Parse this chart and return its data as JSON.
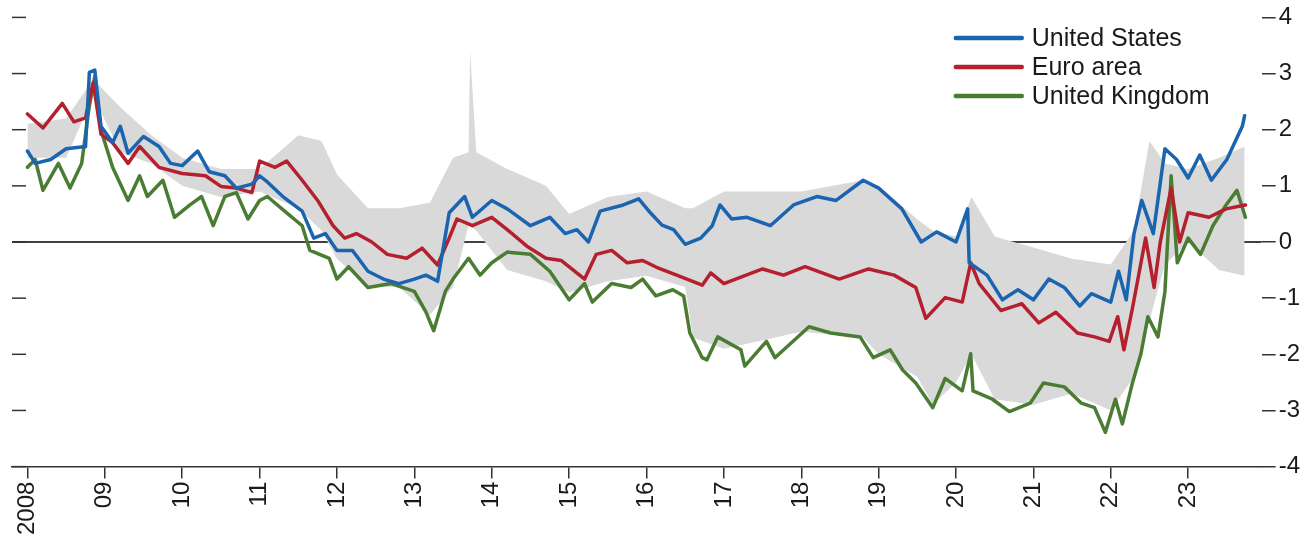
{
  "chart_data": {
    "type": "line",
    "legend": "top right",
    "grid": false,
    "marker": "none",
    "line_style": "solid",
    "xlim": [
      2007.8,
      2023.95
    ],
    "xticks": [
      {
        "value": 2008,
        "label": "2008"
      },
      {
        "value": 2009,
        "label": "09"
      },
      {
        "value": 2010,
        "label": "10"
      },
      {
        "value": 2011,
        "label": "11"
      },
      {
        "value": 2012,
        "label": "12"
      },
      {
        "value": 2013,
        "label": "13"
      },
      {
        "value": 2014,
        "label": "14"
      },
      {
        "value": 2015,
        "label": "15"
      },
      {
        "value": 2016,
        "label": "16"
      },
      {
        "value": 2017,
        "label": "17"
      },
      {
        "value": 2018,
        "label": "18"
      },
      {
        "value": 2019,
        "label": "19"
      },
      {
        "value": 2020,
        "label": "20"
      },
      {
        "value": 2021,
        "label": "21"
      },
      {
        "value": 2022,
        "label": "22"
      },
      {
        "value": 2023,
        "label": "23"
      }
    ],
    "ylim": [
      -4,
      4
    ],
    "yticks": [
      -4,
      -3,
      -2,
      -1,
      0,
      1,
      2,
      3,
      4
    ],
    "ref_lines": [
      {
        "axis": "y",
        "value": 0,
        "color": "#000000"
      }
    ],
    "series": [
      {
        "type": "area",
        "color": "#d9d9d9",
        "values": [
          null,
          null,
          null,
          null,
          null,
          null,
          null,
          null,
          null,
          null,
          null,
          null,
          null,
          null,
          null,
          null,
          null,
          null,
          null,
          null,
          null,
          null,
          null,
          null,
          null,
          null,
          null,
          null,
          null,
          null,
          null,
          null,
          null,
          null,
          null,
          null,
          null,
          null,
          null,
          null,
          null,
          null,
          null
        ],
        "x": [
          2008.0,
          2008.5,
          2008.85,
          2009.2,
          2009.6,
          2010.0,
          2010.5,
          2011.0,
          2011.5,
          2011.8,
          2012.0,
          2012.4,
          2012.8,
          2013.2,
          2013.5,
          2013.7,
          2013.72,
          2013.8,
          2014.2,
          2014.7,
          2015.0,
          2015.5,
          2016.0,
          2016.5,
          2016.6,
          2017.0,
          2018.0,
          2018.8,
          2019.0,
          2019.5,
          2019.7,
          2020.0,
          2020.2,
          2020.5,
          2021.0,
          2021.5,
          2022.0,
          2022.3,
          2022.5,
          2022.7,
          2023.0,
          2023.4,
          2023.73
        ],
        "lower": [
          1.5,
          1.5,
          2.6,
          1.6,
          1.4,
          1.0,
          0.8,
          0.9,
          0.6,
          0.2,
          -0.3,
          -0.8,
          -0.8,
          -1.3,
          -0.8,
          0.3,
          0.3,
          0.2,
          -0.5,
          -0.7,
          -0.9,
          -0.7,
          -0.6,
          -0.8,
          -1.7,
          -1.9,
          -1.6,
          -1.7,
          -2.0,
          -2.4,
          -2.9,
          -2.5,
          -2.0,
          -2.8,
          -2.9,
          -2.7,
          -3.0,
          -2.4,
          -1.4,
          -0.4,
          0.0,
          -0.5,
          -0.6
        ],
        "upper": [
          2.1,
          2.2,
          2.9,
          2.4,
          1.9,
          1.5,
          1.3,
          1.3,
          1.9,
          1.8,
          1.2,
          0.6,
          0.6,
          0.7,
          1.5,
          1.6,
          3.4,
          1.6,
          1.3,
          1.0,
          0.5,
          0.8,
          0.9,
          0.6,
          0.6,
          0.9,
          0.9,
          1.1,
          1.0,
          0.4,
          0.2,
          0.1,
          0.8,
          0.1,
          -0.1,
          -0.3,
          -0.4,
          0.2,
          1.8,
          1.4,
          1.3,
          1.5,
          1.7
        ]
      },
      {
        "name": "United States",
        "color": "#1a64b0",
        "x": [
          2008.0,
          2008.1,
          2008.3,
          2008.5,
          2008.75,
          2008.8,
          2008.87,
          2008.95,
          2009.1,
          2009.2,
          2009.3,
          2009.5,
          2009.7,
          2009.85,
          2010.0,
          2010.2,
          2010.35,
          2010.55,
          2010.7,
          2010.9,
          2011.0,
          2011.1,
          2011.3,
          2011.55,
          2011.7,
          2011.85,
          2012.0,
          2012.2,
          2012.4,
          2012.6,
          2012.8,
          2013.0,
          2013.15,
          2013.3,
          2013.45,
          2013.65,
          2013.75,
          2014.0,
          2014.2,
          2014.5,
          2014.75,
          2014.95,
          2015.1,
          2015.25,
          2015.4,
          2015.7,
          2015.9,
          2016.05,
          2016.2,
          2016.35,
          2016.5,
          2016.7,
          2016.85,
          2016.95,
          2017.1,
          2017.3,
          2017.6,
          2017.9,
          2018.2,
          2018.45,
          2018.8,
          2019.0,
          2019.3,
          2019.55,
          2019.75,
          2020.0,
          2020.15,
          2020.17,
          2020.4,
          2020.6,
          2020.8,
          2021.0,
          2021.2,
          2021.4,
          2021.6,
          2021.75,
          2022.0,
          2022.1,
          2022.2,
          2022.3,
          2022.4,
          2022.55,
          2022.7,
          2022.85,
          2023.0,
          2023.15,
          2023.3,
          2023.5,
          2023.7,
          2023.73
        ],
        "values": [
          1.62,
          1.4,
          1.47,
          1.66,
          1.7,
          3.02,
          3.06,
          2.06,
          1.77,
          2.06,
          1.58,
          1.88,
          1.7,
          1.4,
          1.36,
          1.62,
          1.25,
          1.18,
          0.96,
          1.03,
          1.18,
          1.07,
          0.81,
          0.55,
          0.07,
          0.15,
          -0.15,
          -0.15,
          -0.52,
          -0.66,
          -0.74,
          -0.66,
          -0.59,
          -0.7,
          0.52,
          0.81,
          0.44,
          0.74,
          0.59,
          0.29,
          0.44,
          0.15,
          0.22,
          0.0,
          0.55,
          0.66,
          0.77,
          0.52,
          0.3,
          0.22,
          -0.04,
          0.07,
          0.29,
          0.66,
          0.41,
          0.44,
          0.29,
          0.66,
          0.81,
          0.74,
          1.1,
          0.96,
          0.59,
          0.0,
          0.18,
          0.0,
          0.59,
          -0.37,
          -0.59,
          -1.03,
          -0.85,
          -1.03,
          -0.66,
          -0.81,
          -1.14,
          -0.92,
          -1.07,
          -0.52,
          -1.03,
          0.15,
          0.74,
          0.15,
          1.66,
          1.47,
          1.14,
          1.55,
          1.1,
          1.47,
          2.06,
          2.25
        ]
      },
      {
        "name": "Euro area",
        "color": "#b5202e",
        "x": [
          2008.0,
          2008.2,
          2008.45,
          2008.6,
          2008.75,
          2008.85,
          2008.95,
          2009.1,
          2009.3,
          2009.45,
          2009.7,
          2010.0,
          2010.3,
          2010.5,
          2010.7,
          2010.9,
          2011.0,
          2011.2,
          2011.35,
          2011.55,
          2011.75,
          2011.95,
          2012.1,
          2012.25,
          2012.45,
          2012.65,
          2012.9,
          2013.1,
          2013.3,
          2013.45,
          2013.55,
          2013.75,
          2014.0,
          2014.2,
          2014.45,
          2014.7,
          2014.9,
          2015.2,
          2015.35,
          2015.55,
          2015.75,
          2015.95,
          2016.13,
          2016.39,
          2016.72,
          2016.83,
          2017.0,
          2017.5,
          2017.77,
          2018.05,
          2018.49,
          2018.87,
          2019.2,
          2019.48,
          2019.61,
          2019.86,
          2020.08,
          2020.19,
          2020.3,
          2020.58,
          2020.85,
          2021.07,
          2021.29,
          2021.57,
          2021.79,
          2021.98,
          2022.09,
          2022.17,
          2022.28,
          2022.45,
          2022.56,
          2022.64,
          2022.78,
          2022.89,
          2023.0,
          2023.27,
          2023.49,
          2023.74
        ],
        "values": [
          2.28,
          2.03,
          2.47,
          2.14,
          2.21,
          2.84,
          1.92,
          1.77,
          1.4,
          1.7,
          1.33,
          1.22,
          1.18,
          0.99,
          0.96,
          0.88,
          1.44,
          1.33,
          1.44,
          1.1,
          0.74,
          0.29,
          0.07,
          0.15,
          0.0,
          -0.22,
          -0.29,
          -0.11,
          -0.41,
          0.07,
          0.41,
          0.29,
          0.44,
          0.22,
          -0.07,
          -0.29,
          -0.33,
          -0.66,
          -0.22,
          -0.15,
          -0.37,
          -0.33,
          -0.45,
          -0.59,
          -0.77,
          -0.55,
          -0.74,
          -0.48,
          -0.59,
          -0.44,
          -0.66,
          -0.48,
          -0.59,
          -0.81,
          -1.36,
          -0.99,
          -1.07,
          -0.37,
          -0.74,
          -1.22,
          -1.1,
          -1.44,
          -1.25,
          -1.62,
          -1.69,
          -1.77,
          -1.33,
          -1.92,
          -1.18,
          0.07,
          -0.81,
          0.0,
          0.96,
          0.0,
          0.52,
          0.44,
          0.59,
          0.66
        ]
      },
      {
        "name": "United Kingdom",
        "color": "#4a7d33",
        "x": [
          2008.0,
          2008.1,
          2008.2,
          2008.4,
          2008.55,
          2008.7,
          2008.8,
          2008.87,
          2008.95,
          2009.1,
          2009.3,
          2009.45,
          2009.55,
          2009.75,
          2009.9,
          2010.1,
          2010.25,
          2010.4,
          2010.55,
          2010.7,
          2010.85,
          2011.0,
          2011.1,
          2011.35,
          2011.55,
          2011.65,
          2011.9,
          2012.0,
          2012.15,
          2012.4,
          2012.7,
          2013.0,
          2013.15,
          2013.25,
          2013.4,
          2013.5,
          2013.7,
          2013.85,
          2014.0,
          2014.2,
          2014.5,
          2014.75,
          2015.0,
          2015.2,
          2015.3,
          2015.55,
          2015.8,
          2015.95,
          2016.12,
          2016.34,
          2016.48,
          2016.56,
          2016.72,
          2016.78,
          2016.92,
          2017.22,
          2017.27,
          2017.55,
          2017.66,
          2018.1,
          2018.38,
          2018.76,
          2018.93,
          2019.15,
          2019.31,
          2019.48,
          2019.7,
          2019.86,
          2020.08,
          2020.19,
          2020.22,
          2020.47,
          2020.69,
          2020.96,
          2021.13,
          2021.4,
          2021.62,
          2021.79,
          2021.93,
          2022.06,
          2022.15,
          2022.28,
          2022.39,
          2022.48,
          2022.61,
          2022.7,
          2022.78,
          2022.86,
          2023.0,
          2023.16,
          2023.32,
          2023.49,
          2023.63,
          2023.74
        ],
        "values": [
          1.33,
          1.47,
          0.92,
          1.4,
          0.96,
          1.4,
          2.43,
          2.95,
          1.99,
          1.33,
          0.74,
          1.18,
          0.81,
          1.1,
          0.44,
          0.66,
          0.81,
          0.29,
          0.81,
          0.88,
          0.41,
          0.74,
          0.81,
          0.52,
          0.29,
          -0.15,
          -0.29,
          -0.66,
          -0.44,
          -0.81,
          -0.74,
          -0.88,
          -1.25,
          -1.58,
          -0.88,
          -0.66,
          -0.29,
          -0.59,
          -0.37,
          -0.18,
          -0.22,
          -0.52,
          -1.03,
          -0.74,
          -1.07,
          -0.74,
          -0.81,
          -0.66,
          -0.96,
          -0.85,
          -0.96,
          -1.62,
          -2.06,
          -2.1,
          -1.69,
          -1.92,
          -2.21,
          -1.77,
          -2.06,
          -1.51,
          -1.62,
          -1.69,
          -2.06,
          -1.92,
          -2.28,
          -2.51,
          -2.95,
          -2.43,
          -2.65,
          -1.99,
          -2.65,
          -2.8,
          -3.02,
          -2.87,
          -2.51,
          -2.58,
          -2.87,
          -2.95,
          -3.39,
          -2.8,
          -3.24,
          -2.51,
          -1.99,
          -1.33,
          -1.69,
          -0.88,
          1.18,
          -0.37,
          0.07,
          -0.22,
          0.29,
          0.66,
          0.92,
          0.44
        ]
      }
    ]
  }
}
